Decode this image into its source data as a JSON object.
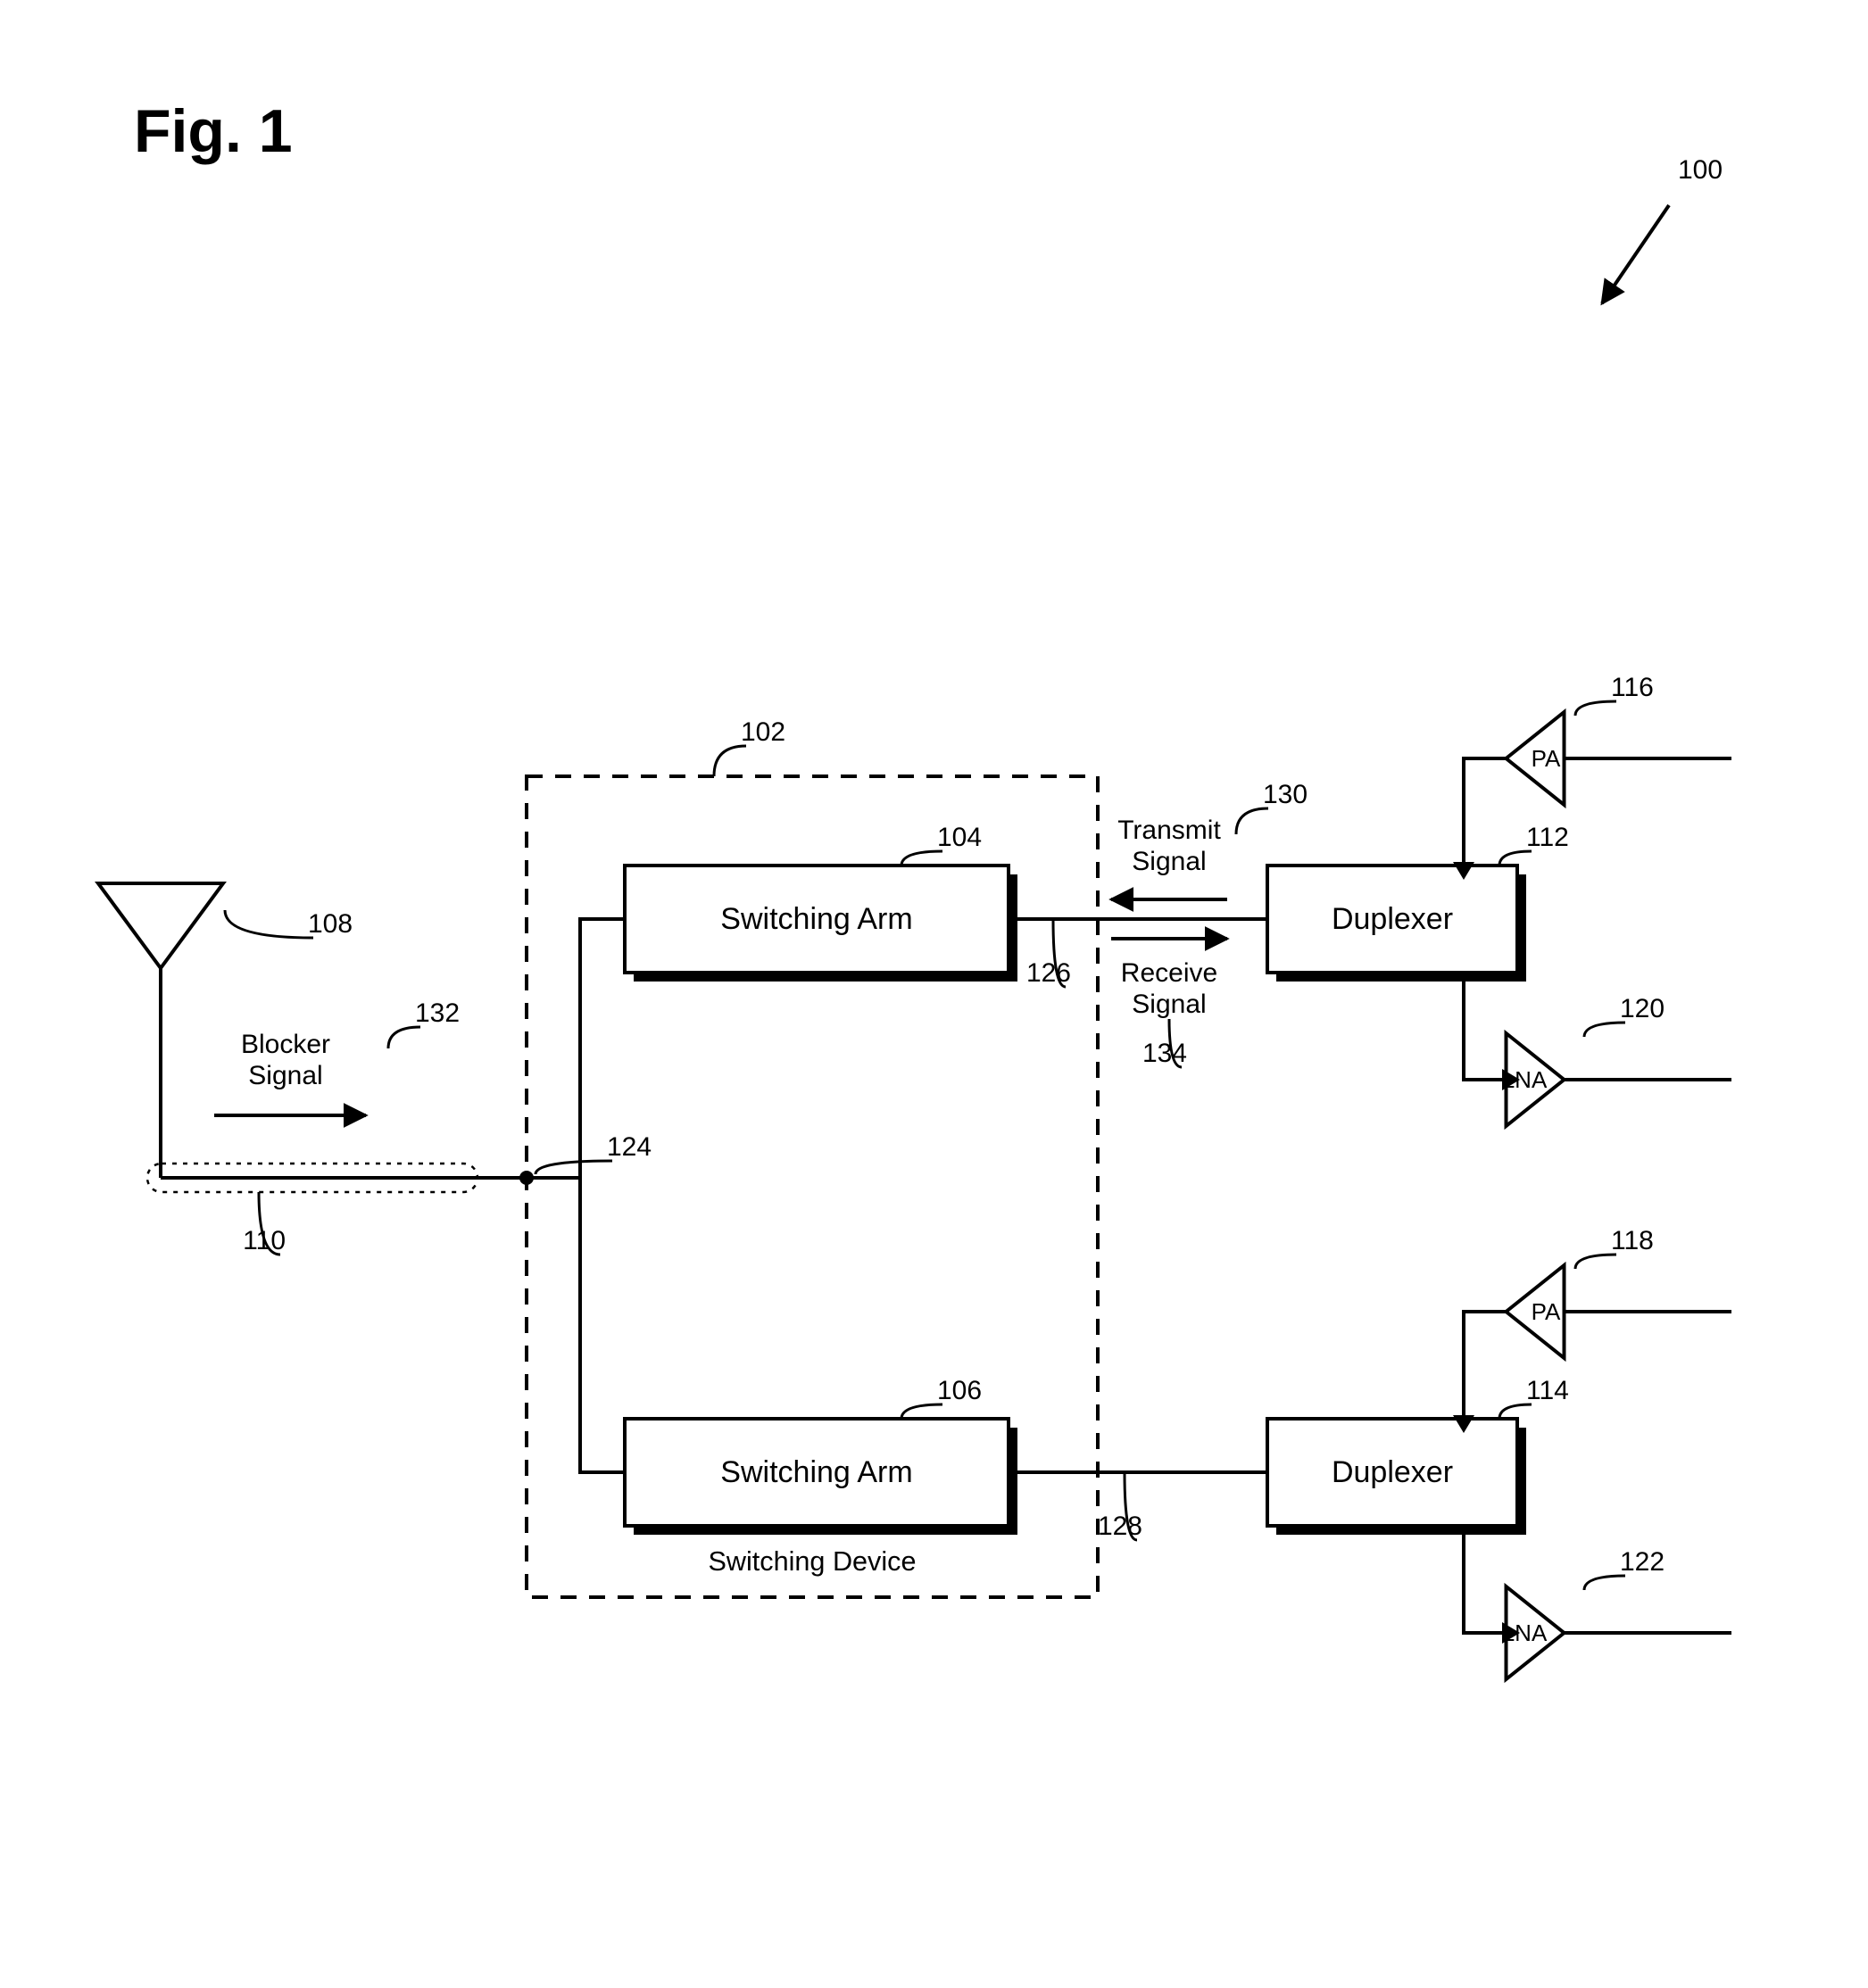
{
  "figure_title": "Fig. 1",
  "system_ref": "100",
  "switching_device": {
    "label": "Switching Device",
    "ref": "102"
  },
  "arm1": {
    "label": "Switching Arm",
    "ref": "104"
  },
  "arm2": {
    "label": "Switching Arm",
    "ref": "106"
  },
  "duplexer1": {
    "label": "Duplexer",
    "ref": "112"
  },
  "duplexer2": {
    "label": "Duplexer",
    "ref": "114"
  },
  "pa1": {
    "label": "PA",
    "ref": "116"
  },
  "pa2": {
    "label": "PA",
    "ref": "118"
  },
  "lna1": {
    "label": "LNA",
    "ref": "120"
  },
  "lna2": {
    "label": "LNA",
    "ref": "122"
  },
  "antenna_ref": "108",
  "coax_ref": "110",
  "common_port_ref": "124",
  "throw1_ref": "126",
  "throw2_ref": "128",
  "transmit_signal": {
    "line1": "Transmit",
    "line2": "Signal",
    "ref": "130"
  },
  "receive_signal": {
    "line1": "Receive",
    "line2": "Signal",
    "ref": "134"
  },
  "blocker_signal": {
    "line1": "Blocker",
    "line2": "Signal",
    "ref": "132"
  },
  "style": {
    "bg": "#ffffff",
    "stroke": "#000000",
    "fill_block": "#ffffff",
    "line_width_normal": 4,
    "line_width_heavy": 8,
    "dash": "18 14",
    "font_block": 34,
    "font_ref": 30,
    "font_signal": 30,
    "font_fig": 68,
    "viewbox_w": 2093,
    "viewbox_h": 2228
  }
}
